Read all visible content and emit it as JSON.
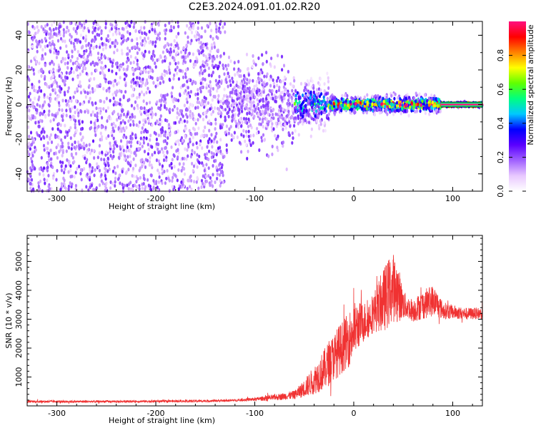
{
  "title": "C2E3.2024.091.01.02.R20",
  "colors": {
    "spectrum_points": "#7a1fff",
    "snr_line": "#f03232",
    "axes": "#000000"
  },
  "chart_data": [
    {
      "type": "heatmap",
      "xlabel": "Height of straight line (km)",
      "ylabel": "Frequency (Hz)",
      "xlim": [
        -330,
        130
      ],
      "ylim": [
        -50,
        48
      ],
      "xticks": [
        -300,
        -200,
        -100,
        0,
        100
      ],
      "yticks": [
        -40,
        -20,
        0,
        20,
        40
      ],
      "grid": false,
      "colorbar": {
        "label": "Normalized spectral amplitude",
        "range": [
          0.0,
          1.0
        ],
        "ticks": [
          0.0,
          0.2,
          0.4,
          0.6,
          0.8
        ],
        "colormap": [
          "#ffffff",
          "#e8c8ff",
          "#a060ff",
          "#5a00ff",
          "#0000ff",
          "#00c8ff",
          "#00ff80",
          "#60ff00",
          "#ffff00",
          "#ff8000",
          "#ff0000",
          "#ff1080"
        ]
      },
      "regions": [
        {
          "x_from": -330,
          "x_to": -130,
          "freq_spread": 48,
          "level": 0.08
        },
        {
          "x_from": -130,
          "x_to": -60,
          "freq_spread": 22,
          "level": 0.15
        },
        {
          "x_from": -60,
          "x_to": -25,
          "freq_spread": 12,
          "level": 0.35
        },
        {
          "x_from": -25,
          "x_to": 88,
          "freq_spread": 4,
          "level": 0.6
        },
        {
          "x_from": 88,
          "x_to": 130,
          "freq_spread": 1,
          "level": 1.0
        }
      ]
    },
    {
      "type": "line",
      "xlabel": "Height of straight line (km)",
      "ylabel": "SNR (10 * v/v)",
      "xlim": [
        -330,
        130
      ],
      "ylim": [
        0,
        5900
      ],
      "xticks": [
        -300,
        -200,
        -100,
        0,
        100
      ],
      "yticks": [
        1000,
        2000,
        3000,
        4000,
        5000
      ],
      "grid": false,
      "series": [
        {
          "x": [
            -330,
            -300,
            -250,
            -200,
            -150,
            -120,
            -100,
            -80,
            -60,
            -50,
            -40,
            -30,
            -25,
            -20,
            -15,
            -10,
            -5,
            0,
            5,
            10,
            15,
            20,
            25,
            30,
            35,
            40,
            45,
            50,
            55,
            60,
            70,
            80,
            85,
            90,
            100,
            110,
            120,
            130
          ],
          "values": [
            150,
            150,
            150,
            160,
            170,
            190,
            230,
            290,
            380,
            600,
            900,
            1250,
            1500,
            1700,
            1900,
            2100,
            2300,
            2600,
            2800,
            2900,
            3000,
            3250,
            3450,
            3650,
            3900,
            4100,
            3900,
            3500,
            3400,
            3300,
            3500,
            3650,
            3500,
            3300,
            3250,
            3200,
            3200,
            3200
          ],
          "noise": [
            40,
            40,
            40,
            40,
            40,
            40,
            60,
            100,
            150,
            300,
            500,
            700,
            800,
            800,
            900,
            900,
            950,
            1000,
            800,
            700,
            650,
            700,
            900,
            1100,
            1200,
            1200,
            1000,
            500,
            400,
            400,
            500,
            550,
            450,
            300,
            250,
            200,
            200,
            200
          ]
        }
      ]
    }
  ]
}
